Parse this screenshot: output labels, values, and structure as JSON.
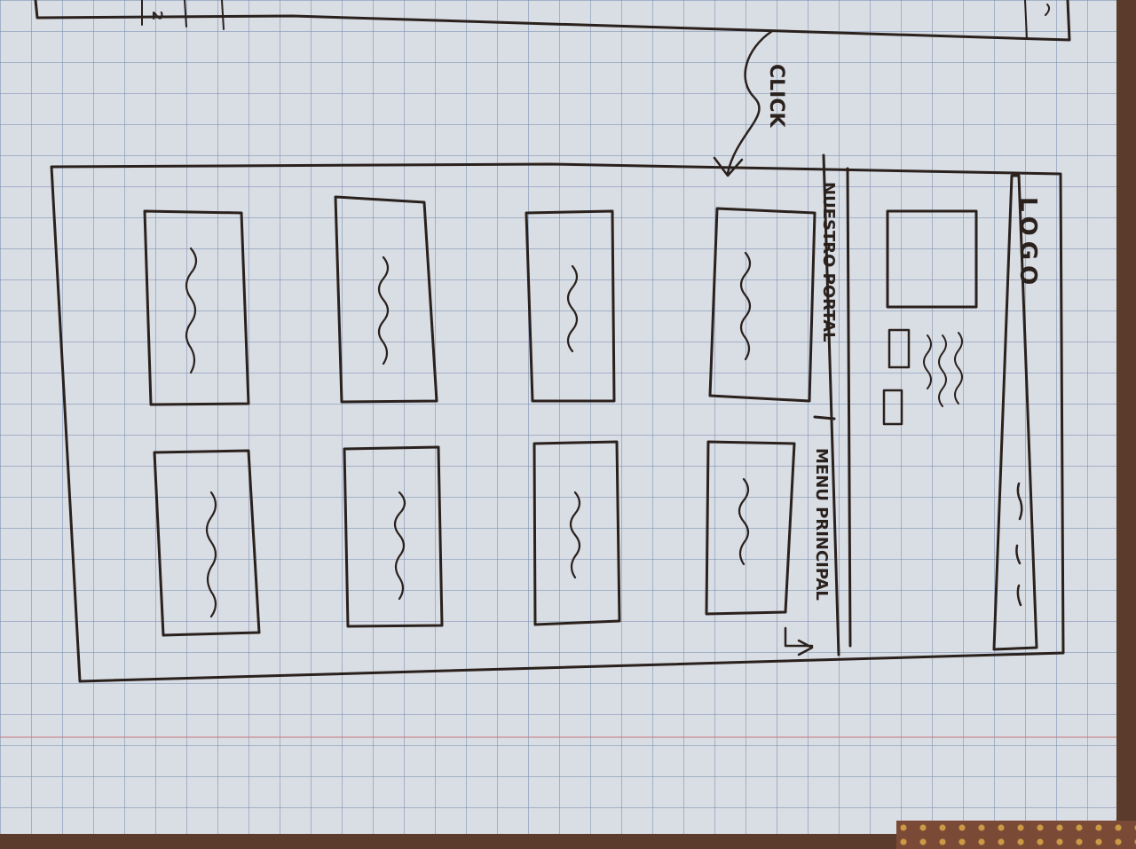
{
  "header": {
    "logo_text": "LOGO"
  },
  "nav": {
    "item_1": "NUESTRO PORTAL",
    "item_2": "MENU PRINCIPAL"
  },
  "annotation": {
    "click_label": "CLICK",
    "step_number": "2"
  }
}
